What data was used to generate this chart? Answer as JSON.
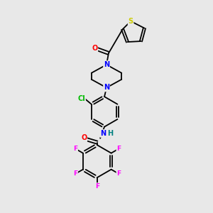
{
  "bg_color": "#e8e8e8",
  "atom_colors": {
    "S": "#cccc00",
    "N": "#0000ff",
    "NH": "#0000ff",
    "H": "#008080",
    "O": "#ff0000",
    "Cl": "#00bb00",
    "F": "#ff00ff",
    "C": "#000000"
  },
  "lw": 1.3
}
